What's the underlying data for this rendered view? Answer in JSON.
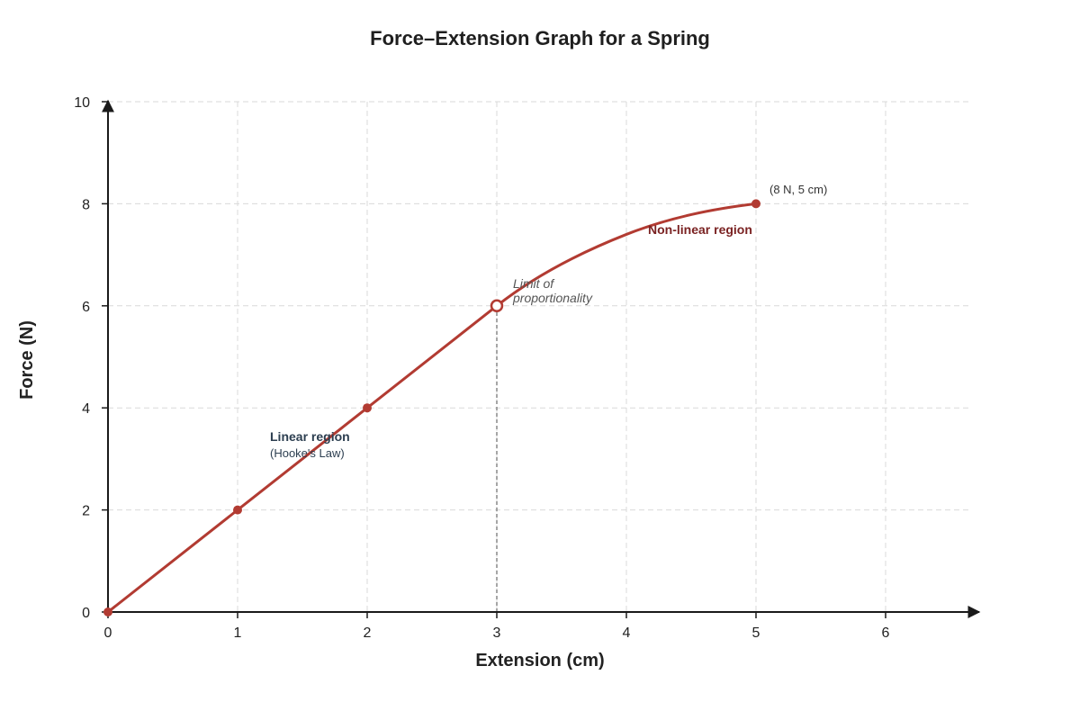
{
  "chart_data": {
    "type": "line",
    "title": "Force–Extension Graph for a Spring",
    "xlabel": "Extension (cm)",
    "ylabel": "Force (N)",
    "xlim": [
      0,
      6
    ],
    "ylim": [
      0,
      10
    ],
    "x_ticks": [
      "0",
      "1",
      "2",
      "3",
      "4",
      "5",
      "6"
    ],
    "y_ticks": [
      "0",
      "2",
      "4",
      "6",
      "8",
      "10"
    ],
    "grid": true,
    "legend": "none",
    "series": [
      {
        "values": [
          {
            "x": 0,
            "y": 0
          },
          {
            "x": 1,
            "y": 2
          },
          {
            "x": 2,
            "y": 4
          },
          {
            "x": 3,
            "y": 6
          },
          {
            "x": 4,
            "y": 7.4
          },
          {
            "x": 5,
            "y": 8
          }
        ],
        "color": "#b23b32"
      }
    ],
    "markers": [
      {
        "x": 0,
        "y": 0,
        "style": "filled"
      },
      {
        "x": 1,
        "y": 2,
        "style": "filled"
      },
      {
        "x": 2,
        "y": 4,
        "style": "filled"
      },
      {
        "x": 3,
        "y": 6,
        "style": "hollow"
      },
      {
        "x": 5,
        "y": 8,
        "style": "filled"
      }
    ],
    "reference_line": {
      "x": 3,
      "from_y": 0,
      "to_y": 6,
      "style": "dashed"
    },
    "annotations": {
      "linear_title": "Linear region",
      "linear_sub": "(Hooke's Law)",
      "limit_line1": "Limit of",
      "limit_line2": "proportionality",
      "nonlinear": "Non-linear region",
      "endpoint": "(8 N, 5 cm)"
    },
    "colors": {
      "curve": "#b23b32",
      "axis": "#1a1a1a",
      "grid": "#d9d9d9",
      "linear_text": "#2c3e50",
      "nonlinear_text": "#7a2222",
      "limit_text": "#555555",
      "reference_line": "#888888"
    }
  }
}
